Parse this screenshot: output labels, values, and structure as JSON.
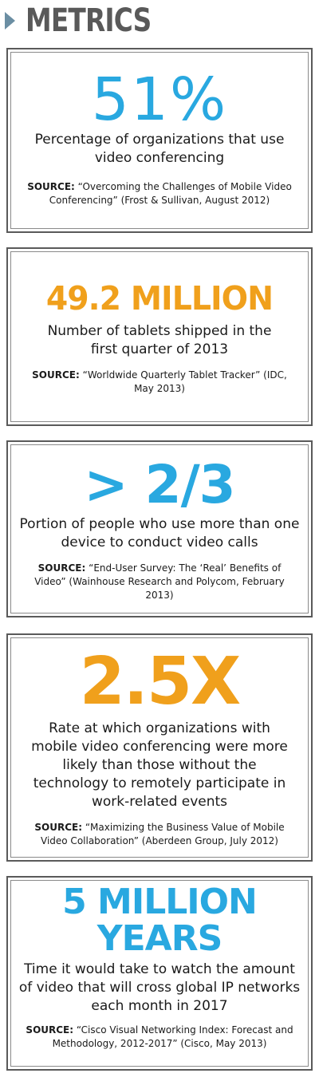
{
  "header": {
    "title": "METRICS",
    "arrow_icon": "triangle-right-icon",
    "arrow_color": "#6b8ea3",
    "title_color": "#595959"
  },
  "colors": {
    "blue": "#29a8e0",
    "orange": "#f0a01c",
    "border": "#5a5a5a"
  },
  "metrics": [
    {
      "value": "51%",
      "description": "Percentage of organizations that use video conferencing",
      "source_label": "SOURCE:",
      "source_text": "“Overcoming the Challenges of Mobile Video Conferencing” (Frost & Sullivan, August 2012)",
      "value_color": "#29a8e0"
    },
    {
      "value": "49.2 MILLION",
      "description": "Number of tablets shipped in the first quarter of 2013",
      "source_label": "SOURCE:",
      "source_text": "“Worldwide Quarterly Tablet Tracker” (IDC, May 2013)",
      "value_color": "#f0a01c"
    },
    {
      "value": "> 2/3",
      "description": "Portion of people who use more than one device to conduct video calls",
      "source_label": "SOURCE:",
      "source_text": "“End-User Survey: The ‘Real’ Benefits of Video” (Wainhouse Research and Polycom, February 2013)",
      "value_color": "#29a8e0"
    },
    {
      "value": "2.5X",
      "description": "Rate at which organizations with mobile video conferencing were more likely than those without the technology to remotely participate in work-related events",
      "source_label": "SOURCE:",
      "source_text": "“Maximizing the Business Value of Mobile Video Collaboration” (Aberdeen Group, July 2012)",
      "value_color": "#f0a01c"
    },
    {
      "value_line1": "5 MILLION",
      "value_line2": "YEARS",
      "description": "Time it would take to watch the amount of video that will cross global IP networks each month in 2017",
      "source_label": "SOURCE:",
      "source_text": "“Cisco Visual Networking Index: Forecast and Methodology, 2012-2017” (Cisco, May 2013)",
      "value_color": "#29a8e0"
    }
  ]
}
